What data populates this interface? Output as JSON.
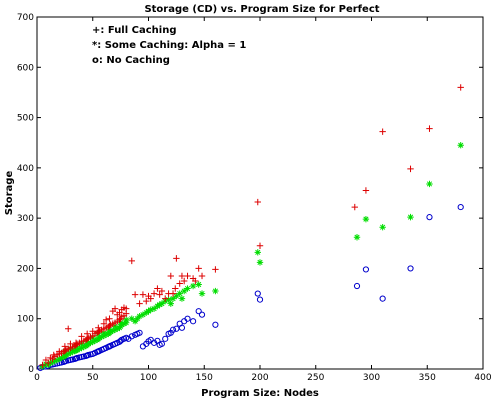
{
  "chart_data": {
    "type": "scatter",
    "title": "Storage (CD) vs. Program Size for Perfect",
    "xlabel": "Program Size: Nodes",
    "ylabel": "Storage",
    "xlim": [
      0,
      400
    ],
    "ylim": [
      0,
      700
    ],
    "xticks": [
      0,
      50,
      100,
      150,
      200,
      250,
      300,
      350,
      400
    ],
    "yticks": [
      0,
      100,
      200,
      300,
      400,
      500,
      600,
      700
    ],
    "grid": false,
    "legend": "top-left",
    "legend_items": [
      "+: Full Caching",
      "*: Some Caching: Alpha = 1",
      "o: No Caching"
    ],
    "series": [
      {
        "label": "+: Full Caching",
        "marker": "plus",
        "color": "#dd0000",
        "points": [
          [
            5,
            8
          ],
          [
            8,
            18
          ],
          [
            10,
            12
          ],
          [
            12,
            22
          ],
          [
            14,
            20
          ],
          [
            16,
            25
          ],
          [
            18,
            28
          ],
          [
            20,
            30
          ],
          [
            22,
            32
          ],
          [
            24,
            35
          ],
          [
            25,
            36
          ],
          [
            26,
            38
          ],
          [
            28,
            40
          ],
          [
            30,
            42
          ],
          [
            32,
            44
          ],
          [
            34,
            46
          ],
          [
            35,
            48
          ],
          [
            36,
            50
          ],
          [
            38,
            52
          ],
          [
            40,
            55
          ],
          [
            42,
            56
          ],
          [
            44,
            58
          ],
          [
            45,
            60
          ],
          [
            46,
            62
          ],
          [
            48,
            64
          ],
          [
            50,
            66
          ],
          [
            52,
            70
          ],
          [
            54,
            72
          ],
          [
            55,
            74
          ],
          [
            56,
            76
          ],
          [
            58,
            78
          ],
          [
            60,
            80
          ],
          [
            62,
            82
          ],
          [
            64,
            84
          ],
          [
            65,
            86
          ],
          [
            66,
            88
          ],
          [
            68,
            90
          ],
          [
            70,
            92
          ],
          [
            72,
            95
          ],
          [
            74,
            98
          ],
          [
            75,
            100
          ],
          [
            76,
            104
          ],
          [
            78,
            106
          ],
          [
            80,
            110
          ],
          [
            15,
            28
          ],
          [
            20,
            35
          ],
          [
            25,
            45
          ],
          [
            28,
            80
          ],
          [
            30,
            50
          ],
          [
            35,
            52
          ],
          [
            40,
            65
          ],
          [
            45,
            70
          ],
          [
            50,
            75
          ],
          [
            55,
            82
          ],
          [
            60,
            90
          ],
          [
            62,
            98
          ],
          [
            65,
            100
          ],
          [
            68,
            115
          ],
          [
            70,
            120
          ],
          [
            72,
            108
          ],
          [
            74,
            112
          ],
          [
            76,
            118
          ],
          [
            78,
            122
          ],
          [
            80,
            120
          ],
          [
            85,
            215
          ],
          [
            88,
            148
          ],
          [
            92,
            130
          ],
          [
            95,
            148
          ],
          [
            98,
            135
          ],
          [
            100,
            145
          ],
          [
            102,
            140
          ],
          [
            105,
            150
          ],
          [
            108,
            160
          ],
          [
            110,
            148
          ],
          [
            112,
            155
          ],
          [
            115,
            140
          ],
          [
            118,
            150
          ],
          [
            120,
            185
          ],
          [
            122,
            150
          ],
          [
            124,
            160
          ],
          [
            125,
            220
          ],
          [
            128,
            170
          ],
          [
            130,
            185
          ],
          [
            132,
            175
          ],
          [
            135,
            185
          ],
          [
            140,
            180
          ],
          [
            142,
            175
          ],
          [
            145,
            200
          ],
          [
            148,
            185
          ],
          [
            160,
            198
          ],
          [
            198,
            332
          ],
          [
            200,
            245
          ],
          [
            285,
            322
          ],
          [
            295,
            355
          ],
          [
            310,
            472
          ],
          [
            335,
            398
          ],
          [
            352,
            478
          ],
          [
            380,
            560
          ]
        ]
      },
      {
        "label": "*: Some Caching: Alpha = 1",
        "marker": "star",
        "color": "#00dd00",
        "points": [
          [
            5,
            5
          ],
          [
            8,
            10
          ],
          [
            10,
            8
          ],
          [
            12,
            12
          ],
          [
            14,
            14
          ],
          [
            16,
            16
          ],
          [
            18,
            18
          ],
          [
            20,
            20
          ],
          [
            22,
            22
          ],
          [
            24,
            24
          ],
          [
            25,
            26
          ],
          [
            26,
            28
          ],
          [
            28,
            30
          ],
          [
            30,
            32
          ],
          [
            32,
            34
          ],
          [
            34,
            36
          ],
          [
            35,
            37
          ],
          [
            36,
            38
          ],
          [
            38,
            40
          ],
          [
            40,
            42
          ],
          [
            42,
            44
          ],
          [
            44,
            46
          ],
          [
            45,
            48
          ],
          [
            46,
            50
          ],
          [
            48,
            52
          ],
          [
            50,
            54
          ],
          [
            52,
            56
          ],
          [
            54,
            58
          ],
          [
            55,
            60
          ],
          [
            56,
            62
          ],
          [
            58,
            64
          ],
          [
            60,
            66
          ],
          [
            62,
            68
          ],
          [
            64,
            70
          ],
          [
            65,
            72
          ],
          [
            66,
            74
          ],
          [
            68,
            76
          ],
          [
            70,
            78
          ],
          [
            72,
            80
          ],
          [
            74,
            82
          ],
          [
            75,
            85
          ],
          [
            76,
            88
          ],
          [
            78,
            90
          ],
          [
            80,
            92
          ],
          [
            25,
            35
          ],
          [
            30,
            40
          ],
          [
            35,
            45
          ],
          [
            40,
            50
          ],
          [
            45,
            55
          ],
          [
            50,
            62
          ],
          [
            55,
            70
          ],
          [
            60,
            72
          ],
          [
            65,
            78
          ],
          [
            70,
            85
          ],
          [
            75,
            92
          ],
          [
            80,
            98
          ],
          [
            85,
            100
          ],
          [
            88,
            95
          ],
          [
            90,
            100
          ],
          [
            92,
            105
          ],
          [
            95,
            108
          ],
          [
            98,
            112
          ],
          [
            100,
            115
          ],
          [
            102,
            118
          ],
          [
            105,
            120
          ],
          [
            108,
            125
          ],
          [
            110,
            128
          ],
          [
            112,
            130
          ],
          [
            115,
            135
          ],
          [
            118,
            138
          ],
          [
            120,
            130
          ],
          [
            122,
            140
          ],
          [
            125,
            145
          ],
          [
            128,
            150
          ],
          [
            130,
            140
          ],
          [
            132,
            155
          ],
          [
            135,
            160
          ],
          [
            140,
            165
          ],
          [
            145,
            168
          ],
          [
            148,
            150
          ],
          [
            160,
            155
          ],
          [
            198,
            232
          ],
          [
            200,
            212
          ],
          [
            287,
            262
          ],
          [
            295,
            298
          ],
          [
            310,
            282
          ],
          [
            335,
            302
          ],
          [
            352,
            368
          ],
          [
            380,
            445
          ]
        ]
      },
      {
        "label": "o: No Caching",
        "marker": "circle",
        "color": "#0000cc",
        "points": [
          [
            3,
            2
          ],
          [
            5,
            4
          ],
          [
            8,
            5
          ],
          [
            10,
            6
          ],
          [
            12,
            8
          ],
          [
            14,
            9
          ],
          [
            16,
            10
          ],
          [
            18,
            11
          ],
          [
            20,
            12
          ],
          [
            22,
            13
          ],
          [
            24,
            14
          ],
          [
            25,
            15
          ],
          [
            26,
            16
          ],
          [
            28,
            17
          ],
          [
            30,
            18
          ],
          [
            32,
            19
          ],
          [
            34,
            20
          ],
          [
            35,
            21
          ],
          [
            36,
            22
          ],
          [
            38,
            23
          ],
          [
            40,
            24
          ],
          [
            42,
            25
          ],
          [
            44,
            26
          ],
          [
            45,
            27
          ],
          [
            46,
            28
          ],
          [
            48,
            29
          ],
          [
            50,
            30
          ],
          [
            52,
            32
          ],
          [
            54,
            34
          ],
          [
            55,
            35
          ],
          [
            56,
            36
          ],
          [
            58,
            38
          ],
          [
            60,
            40
          ],
          [
            62,
            42
          ],
          [
            64,
            44
          ],
          [
            65,
            45
          ],
          [
            66,
            46
          ],
          [
            68,
            48
          ],
          [
            70,
            50
          ],
          [
            72,
            52
          ],
          [
            74,
            54
          ],
          [
            75,
            56
          ],
          [
            76,
            58
          ],
          [
            78,
            60
          ],
          [
            80,
            62
          ],
          [
            82,
            60
          ],
          [
            85,
            65
          ],
          [
            88,
            68
          ],
          [
            90,
            70
          ],
          [
            92,
            72
          ],
          [
            95,
            45
          ],
          [
            98,
            50
          ],
          [
            100,
            55
          ],
          [
            102,
            58
          ],
          [
            105,
            52
          ],
          [
            108,
            56
          ],
          [
            110,
            48
          ],
          [
            112,
            50
          ],
          [
            115,
            60
          ],
          [
            118,
            70
          ],
          [
            120,
            72
          ],
          [
            122,
            78
          ],
          [
            125,
            80
          ],
          [
            128,
            90
          ],
          [
            130,
            82
          ],
          [
            132,
            95
          ],
          [
            135,
            100
          ],
          [
            140,
            95
          ],
          [
            145,
            115
          ],
          [
            148,
            108
          ],
          [
            160,
            88
          ],
          [
            198,
            150
          ],
          [
            200,
            138
          ],
          [
            287,
            165
          ],
          [
            295,
            198
          ],
          [
            310,
            140
          ],
          [
            335,
            200
          ],
          [
            352,
            302
          ],
          [
            380,
            322
          ]
        ]
      }
    ]
  }
}
